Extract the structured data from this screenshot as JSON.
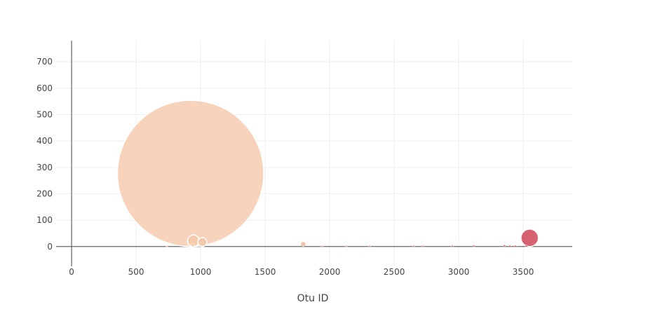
{
  "chart_data": {
    "type": "scatter",
    "title": "",
    "xlabel": "Otu ID",
    "ylabel": "",
    "xlim": [
      -120,
      3880
    ],
    "ylim": [
      -75,
      780
    ],
    "x_ticks": [
      0,
      500,
      1000,
      1500,
      2000,
      2500,
      3000,
      3500
    ],
    "y_ticks": [
      0,
      100,
      200,
      300,
      400,
      500,
      600,
      700
    ],
    "x_tick_labels": [
      "0",
      "500",
      "1000",
      "1500",
      "2000",
      "2500",
      "3000",
      "3500"
    ],
    "y_tick_labels": [
      "0",
      "100",
      "200",
      "300",
      "400",
      "500",
      "600",
      "700"
    ],
    "grid": true,
    "marker_size": "proportional to y value",
    "colorscale": "Otu ID (light peach → crimson)",
    "series": [
      {
        "points": [
          {
            "x": 922,
            "y": 277
          },
          {
            "x": 944,
            "y": 22
          },
          {
            "x": 1013,
            "y": 17
          },
          {
            "x": 940,
            "y": 6
          },
          {
            "x": 1795,
            "y": 9
          },
          {
            "x": 738,
            "y": 1
          },
          {
            "x": 1940,
            "y": 1
          },
          {
            "x": 2128,
            "y": 1
          },
          {
            "x": 2311,
            "y": 1
          },
          {
            "x": 2651,
            "y": 1
          },
          {
            "x": 2720,
            "y": 1
          },
          {
            "x": 2950,
            "y": 1
          },
          {
            "x": 3116,
            "y": 2
          },
          {
            "x": 3355,
            "y": 3
          },
          {
            "x": 3550,
            "y": 33
          },
          {
            "x": 3525,
            "y": 2
          },
          {
            "x": 3395,
            "y": 1
          },
          {
            "x": 3438,
            "y": 1
          }
        ]
      }
    ]
  }
}
